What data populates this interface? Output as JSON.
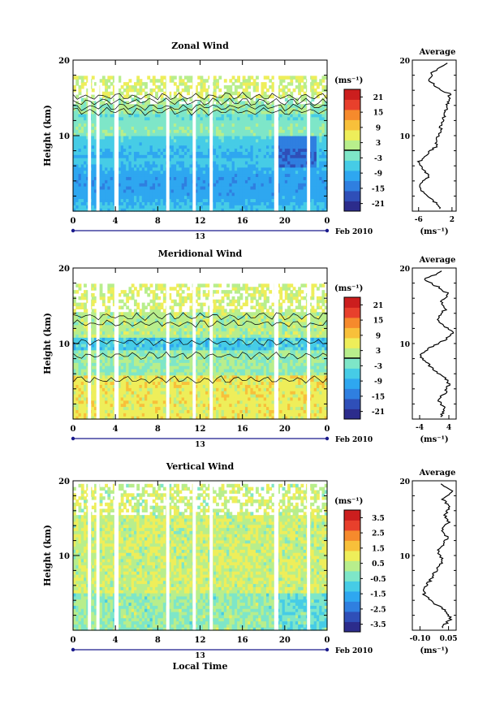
{
  "colors": {
    "scale": [
      "#2c2c8c",
      "#2f4fb8",
      "#2f7fe0",
      "#2ea7f0",
      "#46cce6",
      "#7ee6c8",
      "#b8ee8c",
      "#eeee5a",
      "#f8c03a",
      "#f68a2c",
      "#e8402c",
      "#cc1e1e"
    ],
    "contour": "#000000",
    "axis": "#000000",
    "timebar": "#1a1a8c"
  },
  "chart_data": [
    {
      "type": "heatmap",
      "title": "Zonal Wind",
      "xlabel": "",
      "ylabel": "Height (km)",
      "x_ticks": [
        "0",
        "4",
        "8",
        "12",
        "16",
        "20",
        "0"
      ],
      "y_ticks": [
        "20",
        "10"
      ],
      "xlim": [
        0,
        24
      ],
      "ylim": [
        0,
        20
      ],
      "date_label": "13",
      "date_suffix": "Feb 2010",
      "colorbar": {
        "unit": "(ms⁻¹)",
        "ticks": [
          "21",
          "15",
          "9",
          "3",
          "-3",
          "-9",
          "-15",
          "-21"
        ],
        "range": [
          -24,
          24
        ],
        "line_at": 0
      },
      "profile": {
        "title": "Average",
        "x_ticks": [
          "-6",
          "2"
        ],
        "xlim": [
          -7.5,
          3
        ],
        "xlabel": "(ms⁻¹)",
        "y_ticks": [
          "20",
          "10"
        ],
        "heights": [
          0.5,
          1.5,
          2.5,
          3.5,
          4.5,
          5.5,
          6.5,
          7.5,
          8.5,
          9.5,
          10.5,
          11.5,
          12.5,
          13.5,
          14.5,
          15.5,
          16.5,
          17.5,
          18.5,
          19.5
        ],
        "values": [
          -1,
          -2.5,
          -5,
          -6,
          -3.5,
          -5,
          -6,
          -4,
          -2,
          -1.5,
          -1,
          -0.5,
          0,
          0.5,
          1,
          1.5,
          -2,
          -3.5,
          -2.5,
          1
        ]
      }
    },
    {
      "type": "heatmap",
      "title": "Meridional Wind",
      "xlabel": "",
      "ylabel": "Height (km)",
      "x_ticks": [
        "0",
        "4",
        "8",
        "12",
        "16",
        "20",
        "0"
      ],
      "y_ticks": [
        "20",
        "10"
      ],
      "xlim": [
        0,
        24
      ],
      "ylim": [
        0,
        20
      ],
      "date_label": "13",
      "date_suffix": "Feb 2010",
      "colorbar": {
        "unit": "(ms⁻¹)",
        "ticks": [
          "21",
          "15",
          "9",
          "3",
          "-3",
          "-9",
          "-15",
          "-21"
        ],
        "range": [
          -24,
          24
        ],
        "line_at": 0
      },
      "profile": {
        "title": "Average",
        "x_ticks": [
          "-4",
          "4"
        ],
        "xlim": [
          -6,
          6
        ],
        "xlabel": "(ms⁻¹)",
        "y_ticks": [
          "20",
          "10"
        ],
        "heights": [
          0.5,
          1.5,
          2.5,
          3.5,
          4.5,
          5.5,
          6.5,
          7.5,
          8.5,
          9.5,
          10.5,
          11.5,
          12.5,
          13.5,
          14.5,
          15.5,
          16.5,
          17.5,
          18.5,
          19.5
        ],
        "values": [
          2,
          3,
          1,
          3,
          4,
          3,
          0,
          -2,
          -4,
          -1,
          3,
          5,
          2,
          1,
          3,
          2,
          4,
          1,
          -3,
          2
        ]
      }
    },
    {
      "type": "heatmap",
      "title": "Vertical Wind",
      "xlabel": "Local Time",
      "ylabel": "Height (km)",
      "x_ticks": [
        "0",
        "4",
        "8",
        "12",
        "16",
        "20",
        "0"
      ],
      "y_ticks": [
        "20",
        "10"
      ],
      "xlim": [
        0,
        24
      ],
      "ylim": [
        0,
        20
      ],
      "date_label": "13",
      "date_suffix": "Feb 2010",
      "colorbar": {
        "unit": "(ms⁻¹)",
        "ticks": [
          "3.5",
          "2.5",
          "1.5",
          "0.5",
          "-0.5",
          "-1.5",
          "-2.5",
          "-3.5"
        ],
        "range": [
          -4,
          4
        ],
        "line_at": null
      },
      "profile": {
        "title": "Average",
        "x_ticks": [
          "-0.10",
          "0.05"
        ],
        "xlim": [
          -0.14,
          0.09
        ],
        "xlabel": "(ms⁻¹)",
        "y_ticks": [
          "20",
          "10"
        ],
        "heights": [
          0.5,
          1.5,
          2.5,
          3.5,
          4.5,
          5.5,
          6.5,
          7.5,
          8.5,
          9.5,
          10.5,
          11.5,
          12.5,
          13.5,
          14.5,
          15.5,
          16.5,
          17.5,
          18.5,
          19.5
        ],
        "values": [
          0.02,
          0.06,
          0.04,
          -0.02,
          -0.07,
          -0.09,
          -0.05,
          -0.03,
          0.0,
          0.02,
          -0.01,
          0.03,
          0.04,
          0.02,
          0.05,
          0.03,
          0.06,
          0.02,
          0.07,
          0.01
        ]
      }
    }
  ]
}
